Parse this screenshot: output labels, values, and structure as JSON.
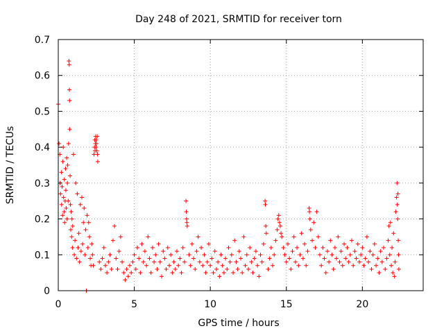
{
  "chart_data": {
    "type": "scatter",
    "title": "Day 248 of 2021, SRMTID for receiver torn",
    "xlabel": "GPS time / hours",
    "ylabel": "SRMTID / TECUs",
    "xlim": [
      0,
      24
    ],
    "ylim": [
      0,
      0.7
    ],
    "grid": true,
    "marker": "+",
    "x_ticks": [
      {
        "value": 0,
        "label": "0"
      },
      {
        "value": 5,
        "label": "5"
      },
      {
        "value": 10,
        "label": "10"
      },
      {
        "value": 15,
        "label": "15"
      },
      {
        "value": 20,
        "label": "20"
      }
    ],
    "y_ticks": [
      {
        "value": 0,
        "label": "0"
      },
      {
        "value": 0.1,
        "label": "0.1"
      },
      {
        "value": 0.2,
        "label": "0.2"
      },
      {
        "value": 0.3,
        "label": "0.3"
      },
      {
        "value": 0.4,
        "label": "0.4"
      },
      {
        "value": 0.5,
        "label": "0.5"
      },
      {
        "value": 0.6,
        "label": "0.6"
      },
      {
        "value": 0.7,
        "label": "0.7"
      }
    ],
    "series": [
      {
        "name": "SRMTID",
        "color": "#ff0000",
        "points": [
          [
            0.0,
            0.52
          ],
          [
            0.05,
            0.41
          ],
          [
            0.1,
            0.38
          ],
          [
            0.12,
            0.3
          ],
          [
            0.15,
            0.27
          ],
          [
            0.2,
            0.33
          ],
          [
            0.22,
            0.24
          ],
          [
            0.25,
            0.29
          ],
          [
            0.28,
            0.21
          ],
          [
            0.3,
            0.36
          ],
          [
            0.33,
            0.4
          ],
          [
            0.35,
            0.26
          ],
          [
            0.38,
            0.22
          ],
          [
            0.4,
            0.31
          ],
          [
            0.42,
            0.19
          ],
          [
            0.45,
            0.25
          ],
          [
            0.48,
            0.34
          ],
          [
            0.5,
            0.28
          ],
          [
            0.52,
            0.23
          ],
          [
            0.55,
            0.37
          ],
          [
            0.58,
            0.2
          ],
          [
            0.6,
            0.3
          ],
          [
            0.62,
            0.35
          ],
          [
            0.65,
            0.25
          ],
          [
            0.68,
            0.41
          ],
          [
            0.7,
            0.64
          ],
          [
            0.72,
            0.63
          ],
          [
            0.73,
            0.56
          ],
          [
            0.74,
            0.53
          ],
          [
            0.75,
            0.45
          ],
          [
            0.78,
            0.32
          ],
          [
            0.8,
            0.24
          ],
          [
            0.82,
            0.17
          ],
          [
            0.85,
            0.22
          ],
          [
            0.88,
            0.15
          ],
          [
            0.9,
            0.2
          ],
          [
            0.93,
            0.12
          ],
          [
            0.95,
            0.18
          ],
          [
            1.0,
            0.38
          ],
          [
            1.05,
            0.1
          ],
          [
            1.1,
            0.14
          ],
          [
            1.15,
            0.3
          ],
          [
            1.2,
            0.09
          ],
          [
            1.25,
            0.27
          ],
          [
            1.3,
            0.12
          ],
          [
            1.35,
            0.16
          ],
          [
            1.4,
            0.08
          ],
          [
            1.45,
            0.24
          ],
          [
            1.5,
            0.11
          ],
          [
            1.55,
            0.26
          ],
          [
            1.6,
            0.13
          ],
          [
            1.65,
            0.19
          ],
          [
            1.7,
            0.23
          ],
          [
            1.75,
            0.1
          ],
          [
            1.8,
            0.17
          ],
          [
            1.85,
            0.0
          ],
          [
            1.9,
            0.21
          ],
          [
            1.95,
            0.12
          ],
          [
            2.0,
            0.19
          ],
          [
            2.05,
            0.15
          ],
          [
            2.1,
            0.09
          ],
          [
            2.15,
            0.07
          ],
          [
            2.2,
            0.13
          ],
          [
            2.25,
            0.1
          ],
          [
            2.3,
            0.07
          ],
          [
            2.35,
            0.38
          ],
          [
            2.38,
            0.4
          ],
          [
            2.4,
            0.42
          ],
          [
            2.42,
            0.39
          ],
          [
            2.44,
            0.41
          ],
          [
            2.46,
            0.43
          ],
          [
            2.48,
            0.4
          ],
          [
            2.5,
            0.42
          ],
          [
            2.52,
            0.41
          ],
          [
            2.54,
            0.39
          ],
          [
            2.56,
            0.43
          ],
          [
            2.58,
            0.38
          ],
          [
            2.6,
            0.36
          ],
          [
            2.7,
            0.08
          ],
          [
            2.8,
            0.06
          ],
          [
            2.9,
            0.09
          ],
          [
            3.0,
            0.12
          ],
          [
            3.1,
            0.07
          ],
          [
            3.2,
            0.05
          ],
          [
            3.3,
            0.08
          ],
          [
            3.4,
            0.1
          ],
          [
            3.5,
            0.06
          ],
          [
            3.6,
            0.14
          ],
          [
            3.7,
            0.18
          ],
          [
            3.8,
            0.09
          ],
          [
            3.9,
            0.06
          ],
          [
            4.0,
            0.11
          ],
          [
            4.1,
            0.15
          ],
          [
            4.2,
            0.08
          ],
          [
            4.3,
            0.05
          ],
          [
            4.4,
            0.03
          ],
          [
            4.5,
            0.06
          ],
          [
            4.6,
            0.04
          ],
          [
            4.7,
            0.07
          ],
          [
            4.8,
            0.05
          ],
          [
            4.9,
            0.08
          ],
          [
            5.0,
            0.1
          ],
          [
            5.1,
            0.06
          ],
          [
            5.2,
            0.12
          ],
          [
            5.3,
            0.09
          ],
          [
            5.4,
            0.05
          ],
          [
            5.5,
            0.13
          ],
          [
            5.6,
            0.08
          ],
          [
            5.7,
            0.11
          ],
          [
            5.8,
            0.07
          ],
          [
            5.9,
            0.15
          ],
          [
            6.0,
            0.09
          ],
          [
            6.1,
            0.05
          ],
          [
            6.2,
            0.12
          ],
          [
            6.3,
            0.08
          ],
          [
            6.4,
            0.1
          ],
          [
            6.5,
            0.06
          ],
          [
            6.6,
            0.13
          ],
          [
            6.7,
            0.08
          ],
          [
            6.8,
            0.04
          ],
          [
            6.9,
            0.11
          ],
          [
            7.0,
            0.09
          ],
          [
            7.1,
            0.06
          ],
          [
            7.2,
            0.12
          ],
          [
            7.3,
            0.07
          ],
          [
            7.4,
            0.1
          ],
          [
            7.5,
            0.05
          ],
          [
            7.6,
            0.08
          ],
          [
            7.7,
            0.06
          ],
          [
            7.8,
            0.11
          ],
          [
            7.9,
            0.07
          ],
          [
            8.0,
            0.09
          ],
          [
            8.1,
            0.05
          ],
          [
            8.2,
            0.12
          ],
          [
            8.3,
            0.08
          ],
          [
            8.4,
            0.25
          ],
          [
            8.42,
            0.22
          ],
          [
            8.44,
            0.2
          ],
          [
            8.46,
            0.19
          ],
          [
            8.48,
            0.18
          ],
          [
            8.6,
            0.1
          ],
          [
            8.7,
            0.07
          ],
          [
            8.8,
            0.13
          ],
          [
            8.9,
            0.09
          ],
          [
            9.0,
            0.06
          ],
          [
            9.1,
            0.11
          ],
          [
            9.2,
            0.15
          ],
          [
            9.3,
            0.08
          ],
          [
            9.4,
            0.12
          ],
          [
            9.5,
            0.07
          ],
          [
            9.6,
            0.1
          ],
          [
            9.7,
            0.05
          ],
          [
            9.8,
            0.08
          ],
          [
            9.9,
            0.13
          ],
          [
            10.0,
            0.07
          ],
          [
            10.1,
            0.09
          ],
          [
            10.2,
            0.05
          ],
          [
            10.3,
            0.11
          ],
          [
            10.4,
            0.06
          ],
          [
            10.5,
            0.08
          ],
          [
            10.6,
            0.04
          ],
          [
            10.7,
            0.1
          ],
          [
            10.8,
            0.07
          ],
          [
            10.9,
            0.05
          ],
          [
            11.0,
            0.09
          ],
          [
            11.1,
            0.06
          ],
          [
            11.2,
            0.12
          ],
          [
            11.3,
            0.08
          ],
          [
            11.4,
            0.1
          ],
          [
            11.5,
            0.05
          ],
          [
            11.6,
            0.14
          ],
          [
            11.7,
            0.08
          ],
          [
            11.8,
            0.06
          ],
          [
            11.9,
            0.11
          ],
          [
            12.0,
            0.09
          ],
          [
            12.1,
            0.05
          ],
          [
            12.2,
            0.15
          ],
          [
            12.3,
            0.07
          ],
          [
            12.4,
            0.1
          ],
          [
            12.5,
            0.06
          ],
          [
            12.6,
            0.12
          ],
          [
            12.7,
            0.08
          ],
          [
            12.8,
            0.05
          ],
          [
            12.9,
            0.09
          ],
          [
            13.0,
            0.11
          ],
          [
            13.1,
            0.07
          ],
          [
            13.2,
            0.04
          ],
          [
            13.3,
            0.1
          ],
          [
            13.4,
            0.08
          ],
          [
            13.5,
            0.13
          ],
          [
            13.6,
            0.25
          ],
          [
            13.62,
            0.24
          ],
          [
            13.65,
            0.18
          ],
          [
            13.68,
            0.16
          ],
          [
            13.8,
            0.06
          ],
          [
            13.9,
            0.09
          ],
          [
            14.0,
            0.12
          ],
          [
            14.1,
            0.07
          ],
          [
            14.2,
            0.1
          ],
          [
            14.3,
            0.14
          ],
          [
            14.4,
            0.17
          ],
          [
            14.45,
            0.2
          ],
          [
            14.5,
            0.21
          ],
          [
            14.55,
            0.19
          ],
          [
            14.6,
            0.18
          ],
          [
            14.65,
            0.16
          ],
          [
            14.7,
            0.15
          ],
          [
            14.8,
            0.12
          ],
          [
            14.9,
            0.1
          ],
          [
            15.0,
            0.08
          ],
          [
            15.1,
            0.13
          ],
          [
            15.2,
            0.09
          ],
          [
            15.3,
            0.06
          ],
          [
            15.4,
            0.11
          ],
          [
            15.5,
            0.15
          ],
          [
            15.6,
            0.08
          ],
          [
            15.7,
            0.12
          ],
          [
            15.8,
            0.07
          ],
          [
            15.9,
            0.1
          ],
          [
            16.0,
            0.16
          ],
          [
            16.1,
            0.09
          ],
          [
            16.2,
            0.13
          ],
          [
            16.3,
            0.07
          ],
          [
            16.4,
            0.11
          ],
          [
            16.5,
            0.23
          ],
          [
            16.52,
            0.22
          ],
          [
            16.55,
            0.2
          ],
          [
            16.6,
            0.17
          ],
          [
            16.7,
            0.14
          ],
          [
            16.8,
            0.19
          ],
          [
            16.9,
            0.12
          ],
          [
            17.0,
            0.22
          ],
          [
            17.1,
            0.15
          ],
          [
            17.2,
            0.1
          ],
          [
            17.3,
            0.07
          ],
          [
            17.4,
            0.12
          ],
          [
            17.5,
            0.09
          ],
          [
            17.6,
            0.05
          ],
          [
            17.7,
            0.11
          ],
          [
            17.8,
            0.08
          ],
          [
            17.9,
            0.14
          ],
          [
            18.0,
            0.1
          ],
          [
            18.1,
            0.06
          ],
          [
            18.2,
            0.12
          ],
          [
            18.3,
            0.09
          ],
          [
            18.4,
            0.15
          ],
          [
            18.5,
            0.08
          ],
          [
            18.6,
            0.11
          ],
          [
            18.7,
            0.07
          ],
          [
            18.8,
            0.13
          ],
          [
            18.9,
            0.09
          ],
          [
            19.0,
            0.12
          ],
          [
            19.1,
            0.08
          ],
          [
            19.2,
            0.1
          ],
          [
            19.3,
            0.14
          ],
          [
            19.4,
            0.07
          ],
          [
            19.5,
            0.11
          ],
          [
            19.6,
            0.09
          ],
          [
            19.7,
            0.13
          ],
          [
            19.8,
            0.08
          ],
          [
            19.9,
            0.1
          ],
          [
            20.0,
            0.12
          ],
          [
            20.1,
            0.07
          ],
          [
            20.2,
            0.09
          ],
          [
            20.3,
            0.15
          ],
          [
            20.4,
            0.08
          ],
          [
            20.5,
            0.11
          ],
          [
            20.6,
            0.06
          ],
          [
            20.7,
            0.1
          ],
          [
            20.8,
            0.13
          ],
          [
            20.9,
            0.07
          ],
          [
            21.0,
            0.09
          ],
          [
            21.1,
            0.05
          ],
          [
            21.2,
            0.11
          ],
          [
            21.3,
            0.08
          ],
          [
            21.4,
            0.12
          ],
          [
            21.5,
            0.06
          ],
          [
            21.6,
            0.09
          ],
          [
            21.7,
            0.14
          ],
          [
            21.75,
            0.18
          ],
          [
            21.8,
            0.1
          ],
          [
            21.85,
            0.19
          ],
          [
            21.9,
            0.07
          ],
          [
            21.95,
            0.12
          ],
          [
            22.0,
            0.05
          ],
          [
            22.05,
            0.16
          ],
          [
            22.1,
            0.04
          ],
          [
            22.15,
            0.08
          ],
          [
            22.2,
            0.22
          ],
          [
            22.25,
            0.26
          ],
          [
            22.28,
            0.3
          ],
          [
            22.3,
            0.24
          ],
          [
            22.32,
            0.2
          ],
          [
            22.34,
            0.27
          ],
          [
            22.36,
            0.14
          ],
          [
            22.38,
            0.1
          ],
          [
            22.4,
            0.06
          ]
        ]
      }
    ]
  }
}
